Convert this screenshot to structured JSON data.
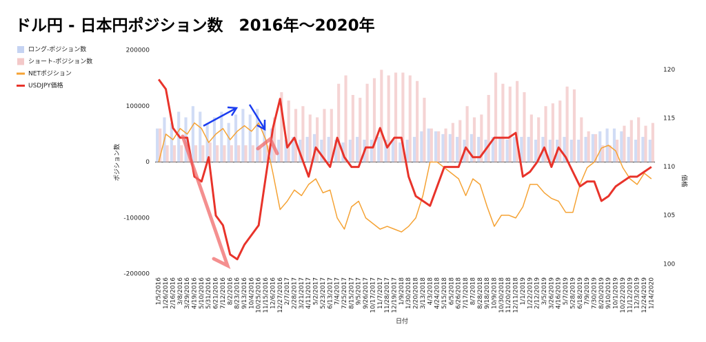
{
  "chart_data": {
    "type": "combo",
    "title": "ドル円 - 日本円ポジション数　2016年〜2020年",
    "x_label": "日付",
    "y_label": "ポジション数",
    "y2_label": "価格",
    "categories": [
      "1/5/2016",
      "1/26/2016",
      "2/16/2016",
      "3/8/2016",
      "3/29/2016",
      "4/19/2016",
      "5/10/2016",
      "5/31/2016",
      "6/21/2016",
      "7/12/2016",
      "8/2/2016",
      "8/23/2016",
      "9/13/2016",
      "10/4/2016",
      "10/25/2016",
      "11/15/2016",
      "12/6/2016",
      "12/27/2016",
      "2/7/2017",
      "2/28/2017",
      "3/21/2017",
      "4/11/2017",
      "5/2/2017",
      "5/23/2017",
      "6/13/2017",
      "7/4/2017",
      "7/25/2017",
      "8/15/2017",
      "9/5/2017",
      "9/26/2017",
      "10/17/2017",
      "11/7/2017",
      "11/28/2017",
      "12/19/2017",
      "1/9/2018",
      "1/30/2018",
      "2/20/2018",
      "3/13/2018",
      "4/3/2018",
      "4/24/2018",
      "5/15/2018",
      "6/5/2018",
      "6/26/2018",
      "7/17/2018",
      "8/7/2018",
      "8/28/2018",
      "9/18/2018",
      "10/9/2018",
      "10/30/2018",
      "11/20/2018",
      "12/11/2018",
      "1/1/2019",
      "1/22/2019",
      "2/12/2019",
      "3/5/2019",
      "3/26/2019",
      "4/16/2019",
      "5/7/2019",
      "5/28/2019",
      "6/18/2019",
      "7/9/2019",
      "7/30/2019",
      "8/20/2019",
      "9/10/2019",
      "10/1/2019",
      "10/22/2019",
      "11/12/2019",
      "12/3/2019",
      "12/24/2019",
      "1/14/2020"
    ],
    "series": [
      {
        "name": "ロング-ポジション数",
        "type": "bar",
        "color": "#c5d3f2",
        "values": [
          60000,
          80000,
          70000,
          90000,
          80000,
          100000,
          90000,
          70000,
          80000,
          90000,
          70000,
          85000,
          95000,
          85000,
          95000,
          70000,
          60000,
          40000,
          40000,
          45000,
          40000,
          45000,
          50000,
          40000,
          45000,
          40000,
          35000,
          40000,
          45000,
          40000,
          40000,
          45000,
          40000,
          40000,
          35000,
          40000,
          45000,
          55000,
          60000,
          55000,
          50000,
          50000,
          45000,
          40000,
          50000,
          45000,
          40000,
          45000,
          45000,
          40000,
          45000,
          45000,
          45000,
          40000,
          45000,
          40000,
          40000,
          45000,
          40000,
          40000,
          45000,
          50000,
          55000,
          60000,
          60000,
          55000,
          45000,
          40000,
          45000,
          40000
        ]
      },
      {
        "name": "ショート-ポジション数",
        "type": "bar",
        "color": "#f3c9c9",
        "values": [
          60000,
          30000,
          30000,
          30000,
          30000,
          30000,
          30000,
          35000,
          30000,
          30000,
          30000,
          30000,
          30000,
          30000,
          25000,
          30000,
          80000,
          125000,
          110000,
          95000,
          100000,
          85000,
          80000,
          95000,
          95000,
          140000,
          155000,
          120000,
          115000,
          140000,
          150000,
          165000,
          155000,
          160000,
          160000,
          155000,
          145000,
          115000,
          60000,
          55000,
          60000,
          70000,
          75000,
          100000,
          80000,
          85000,
          120000,
          160000,
          140000,
          135000,
          145000,
          125000,
          85000,
          80000,
          100000,
          105000,
          110000,
          135000,
          130000,
          80000,
          55000,
          50000,
          30000,
          30000,
          40000,
          65000,
          75000,
          80000,
          65000,
          70000
        ]
      },
      {
        "name": "NETポジション",
        "type": "line",
        "color": "#f5a233",
        "values": [
          0,
          50000,
          40000,
          60000,
          50000,
          70000,
          60000,
          35000,
          50000,
          60000,
          40000,
          55000,
          65000,
          55000,
          70000,
          40000,
          -20000,
          -85000,
          -70000,
          -50000,
          -60000,
          -40000,
          -30000,
          -55000,
          -50000,
          -100000,
          -120000,
          -80000,
          -70000,
          -100000,
          -110000,
          -120000,
          -115000,
          -120000,
          -125000,
          -115000,
          -100000,
          -60000,
          0,
          0,
          -10000,
          -20000,
          -30000,
          -60000,
          -30000,
          -40000,
          -80000,
          -115000,
          -95000,
          -95000,
          -100000,
          -80000,
          -40000,
          -40000,
          -55000,
          -65000,
          -70000,
          -90000,
          -90000,
          -40000,
          -10000,
          0,
          25000,
          30000,
          20000,
          -10000,
          -30000,
          -40000,
          -20000,
          -30000
        ]
      },
      {
        "name": "USDJPY価格",
        "type": "line",
        "axis": "y2",
        "color": "#e8332a",
        "values": [
          119,
          118,
          114,
          113,
          113,
          109,
          108.5,
          111,
          105,
          104,
          101,
          100.5,
          102,
          103,
          104,
          109,
          114,
          117,
          112,
          113,
          111,
          109,
          112,
          111,
          110,
          113,
          111,
          110,
          110,
          112,
          112,
          114,
          112,
          113,
          113,
          109,
          107,
          106.5,
          106,
          108,
          110,
          110,
          110,
          112,
          111,
          111,
          112,
          113,
          113,
          113,
          113.5,
          109,
          109.5,
          110.5,
          112,
          110,
          112,
          111,
          109.5,
          108,
          108.5,
          108.5,
          106.5,
          107,
          108,
          108.5,
          109,
          109,
          109.5,
          110
        ]
      }
    ],
    "ylim": [
      -200000,
      200000
    ],
    "yticks": [
      -200000,
      -100000,
      0,
      100000,
      200000
    ],
    "y2lim": [
      99,
      122
    ],
    "y2ticks": [
      100,
      105,
      110,
      115,
      120
    ],
    "legend": "left"
  }
}
